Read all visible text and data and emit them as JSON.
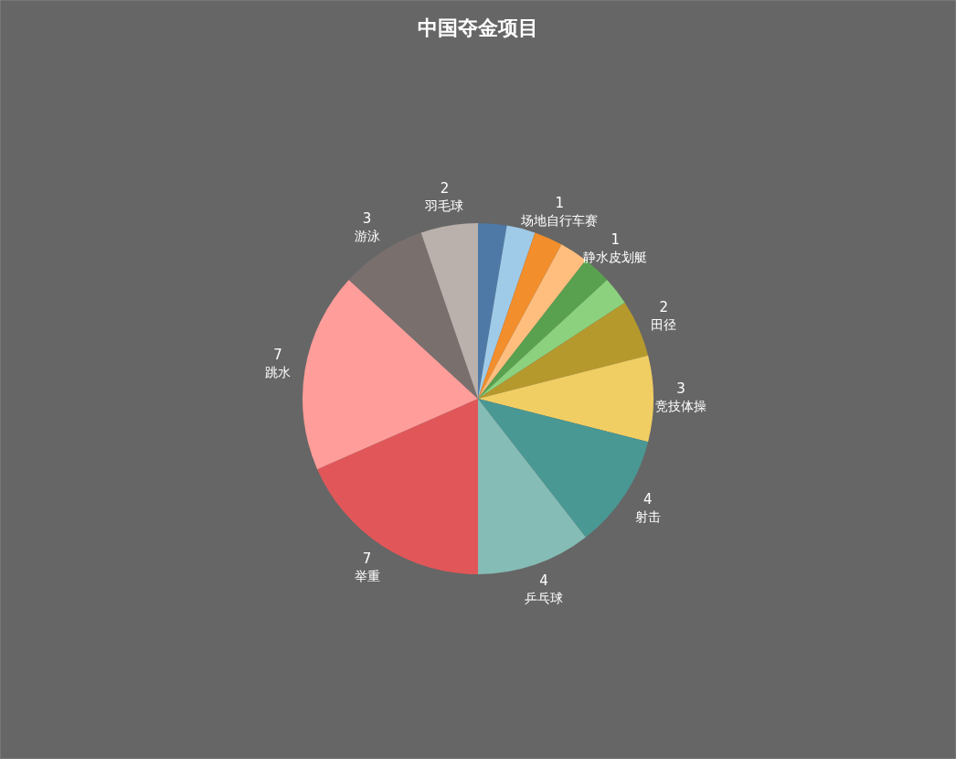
{
  "chart_data": {
    "type": "pie",
    "title": "中国夺金项目",
    "categories": [
      null,
      null,
      "场地自行车赛",
      null,
      "静水皮划艇",
      null,
      "田径",
      "竞技体操",
      "射击",
      "乒乓球",
      "举重",
      "跳水",
      "游泳",
      "羽毛球"
    ],
    "values": [
      1,
      1,
      1,
      1,
      1,
      1,
      2,
      3,
      4,
      4,
      7,
      7,
      3,
      2
    ],
    "value_labels": [
      null,
      null,
      "1",
      null,
      "1",
      null,
      "2",
      "3",
      "4",
      "4",
      "7",
      "7",
      "3",
      "2"
    ],
    "colors": [
      "#4e79a7",
      "#a0cbe8",
      "#f28e2b",
      "#ffbe7d",
      "#59a14f",
      "#8cd17d",
      "#b6992d",
      "#f1ce63",
      "#499894",
      "#86bcb6",
      "#e15759",
      "#ff9d9a",
      "#79706e",
      "#bab0ac"
    ]
  }
}
